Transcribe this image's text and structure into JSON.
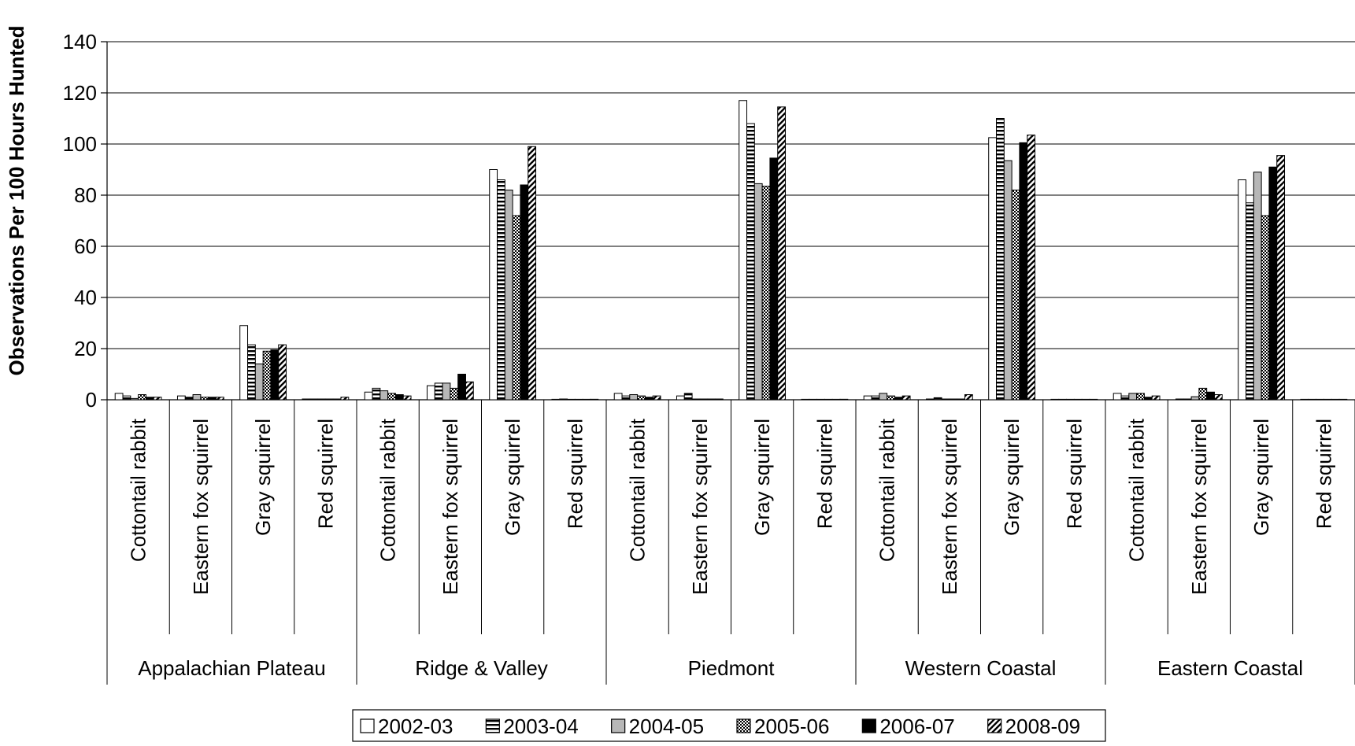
{
  "chart_data": {
    "type": "bar",
    "title": "",
    "xlabel": "",
    "ylabel": "Observations Per 100 Hours Hunted",
    "ylim": [
      0,
      140
    ],
    "yticks": [
      0,
      20,
      40,
      60,
      80,
      100,
      120,
      140
    ],
    "grid": true,
    "legend_position": "bottom",
    "groups": [
      "Appalachian Plateau",
      "Ridge & Valley",
      "Piedmont",
      "Western Coastal",
      "Eastern Coastal"
    ],
    "species": [
      "Cottontail rabbit",
      "Eastern fox squirrel",
      "Gray squirrel",
      "Red squirrel"
    ],
    "series": [
      {
        "name": "2002-03",
        "pattern": "white",
        "values": [
          2.5,
          1.5,
          29,
          0.3,
          3,
          5.5,
          90,
          0,
          2.5,
          1.5,
          117,
          0,
          1.5,
          0.3,
          102.5,
          0,
          2.5,
          0.3,
          86,
          0
        ]
      },
      {
        "name": "2003-04",
        "pattern": "horizontal",
        "values": [
          1.5,
          1,
          21.5,
          0.3,
          4.5,
          6.5,
          86,
          0.3,
          1.5,
          2.5,
          108,
          0,
          1.5,
          0.8,
          110,
          0,
          1.5,
          0.3,
          77,
          0
        ]
      },
      {
        "name": "2004-05",
        "pattern": "gray",
        "values": [
          0.5,
          2,
          14,
          0.3,
          3.5,
          6.5,
          82,
          0,
          2,
          0.3,
          84.5,
          0,
          2.5,
          0.3,
          93.5,
          0,
          2.5,
          1.2,
          89,
          0
        ]
      },
      {
        "name": "2005-06",
        "pattern": "checker",
        "values": [
          2,
          1,
          19,
          0.3,
          2.5,
          4.5,
          72,
          0,
          1.5,
          0.3,
          83.5,
          0,
          1.5,
          0.3,
          82,
          0,
          2.5,
          4.5,
          72,
          0
        ]
      },
      {
        "name": "2006-07",
        "pattern": "black",
        "values": [
          1,
          1,
          19.5,
          0.3,
          2,
          10,
          84,
          0,
          1,
          0.3,
          94.5,
          0,
          1,
          0.3,
          100.5,
          0,
          1,
          3,
          91,
          0
        ]
      },
      {
        "name": "2008-09",
        "pattern": "diagonal",
        "values": [
          1,
          1,
          21.5,
          1,
          1.5,
          7,
          99,
          0.2,
          1.5,
          0.3,
          114.5,
          0.2,
          1.5,
          2,
          103.5,
          0,
          1.5,
          2,
          95.5,
          0
        ]
      }
    ]
  }
}
